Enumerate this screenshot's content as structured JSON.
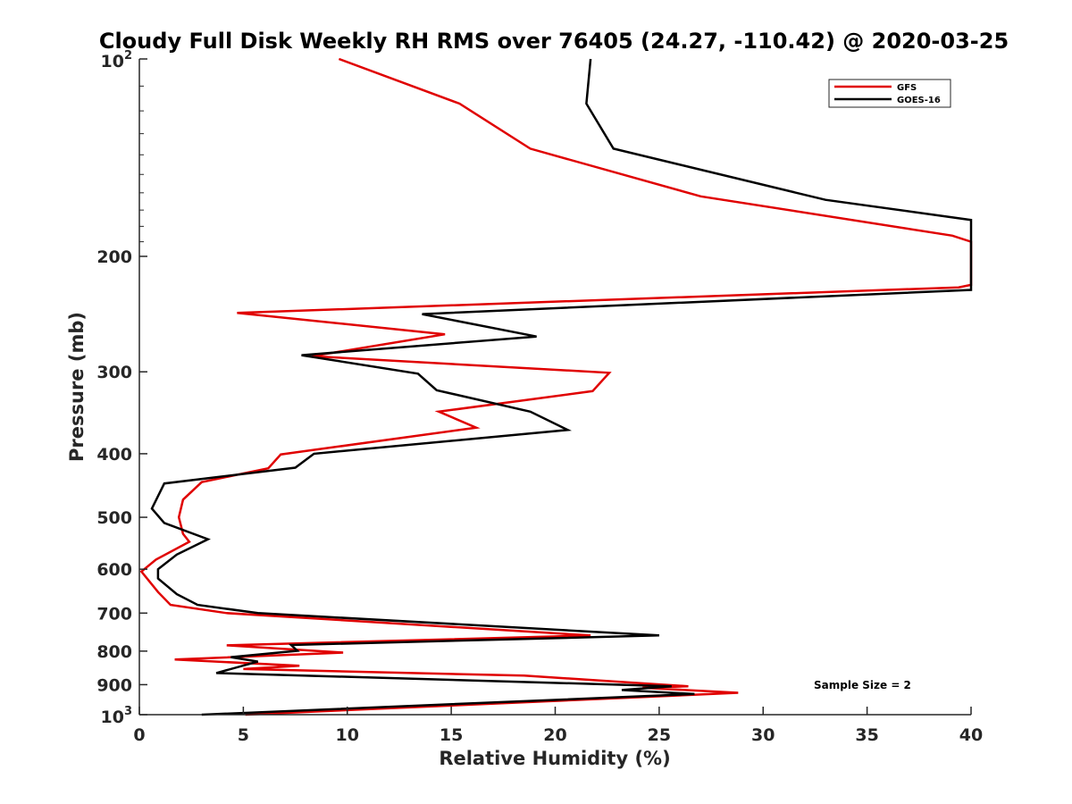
{
  "chart_data": {
    "type": "line",
    "title": "Cloudy Full Disk Weekly RH RMS over 76405 (24.27, -110.42) @ 2020-03-25",
    "xlabel": "Relative Humidity (%)",
    "ylabel": "Pressure (mb)",
    "xlim": [
      0,
      40
    ],
    "ylim": [
      100,
      1000
    ],
    "yscale": "log",
    "y_reversed": true,
    "xticks": [
      0,
      5,
      10,
      15,
      20,
      25,
      30,
      35,
      40
    ],
    "yticks": [
      {
        "value": 100,
        "label": "10",
        "sup": "2"
      },
      {
        "value": 200,
        "label": "200",
        "sup": ""
      },
      {
        "value": 300,
        "label": "300",
        "sup": ""
      },
      {
        "value": 400,
        "label": "400",
        "sup": ""
      },
      {
        "value": 500,
        "label": "500",
        "sup": ""
      },
      {
        "value": 600,
        "label": "600",
        "sup": ""
      },
      {
        "value": 700,
        "label": "700",
        "sup": ""
      },
      {
        "value": 800,
        "label": "800",
        "sup": ""
      },
      {
        "value": 900,
        "label": "900",
        "sup": ""
      },
      {
        "value": 1000,
        "label": "10",
        "sup": "3"
      }
    ],
    "grid": false,
    "legend_position": "top-right",
    "annotation": "Sample Size = 2",
    "series": [
      {
        "name": "GFS",
        "color": "#e00000",
        "points": [
          [
            9.6,
            100
          ],
          [
            15.4,
            117
          ],
          [
            18.8,
            137
          ],
          [
            27.0,
            162
          ],
          [
            39.1,
            186
          ],
          [
            40.0,
            190
          ],
          [
            40.0,
            221
          ],
          [
            39.4,
            223
          ],
          [
            4.7,
            244
          ],
          [
            14.7,
            263
          ],
          [
            8.3,
            284
          ],
          [
            22.6,
            301
          ],
          [
            21.8,
            321
          ],
          [
            14.4,
            345
          ],
          [
            16.2,
            365
          ],
          [
            6.8,
            401
          ],
          [
            6.2,
            421
          ],
          [
            3.0,
            442
          ],
          [
            2.1,
            470
          ],
          [
            1.9,
            500
          ],
          [
            2.1,
            530
          ],
          [
            2.4,
            545
          ],
          [
            0.8,
            580
          ],
          [
            0.1,
            605
          ],
          [
            0.9,
            650
          ],
          [
            1.5,
            680
          ],
          [
            4.2,
            700
          ],
          [
            21.7,
            757
          ],
          [
            4.2,
            784
          ],
          [
            9.8,
            804
          ],
          [
            1.7,
            824
          ],
          [
            7.7,
            842
          ],
          [
            5.0,
            852
          ],
          [
            18.5,
            872
          ],
          [
            26.4,
            905
          ],
          [
            24.2,
            910
          ],
          [
            28.8,
            926
          ],
          [
            5.1,
            1000
          ]
        ]
      },
      {
        "name": "GOES-16",
        "color": "#000000",
        "points": [
          [
            21.7,
            100
          ],
          [
            21.5,
            117
          ],
          [
            22.8,
            137
          ],
          [
            33.0,
            164
          ],
          [
            40.0,
            176
          ],
          [
            40.0,
            225
          ],
          [
            13.6,
            245
          ],
          [
            19.1,
            265
          ],
          [
            7.8,
            283
          ],
          [
            13.4,
            302
          ],
          [
            14.3,
            320
          ],
          [
            18.8,
            345
          ],
          [
            20.6,
            368
          ],
          [
            8.4,
            400
          ],
          [
            7.5,
            420
          ],
          [
            1.2,
            444
          ],
          [
            0.6,
            485
          ],
          [
            1.2,
            510
          ],
          [
            3.3,
            540
          ],
          [
            1.8,
            570
          ],
          [
            0.9,
            600
          ],
          [
            0.9,
            620
          ],
          [
            1.8,
            655
          ],
          [
            2.8,
            680
          ],
          [
            5.7,
            700
          ],
          [
            25.0,
            757
          ],
          [
            7.3,
            783
          ],
          [
            7.6,
            799
          ],
          [
            4.4,
            817
          ],
          [
            5.7,
            830
          ],
          [
            3.7,
            864
          ],
          [
            25.6,
            905
          ],
          [
            23.2,
            917
          ],
          [
            26.7,
            930
          ],
          [
            3.0,
            1000
          ]
        ]
      }
    ]
  }
}
